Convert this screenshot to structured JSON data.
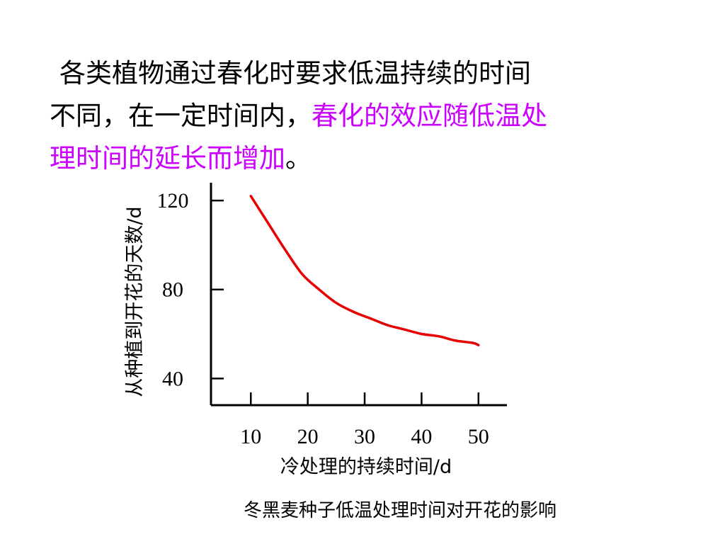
{
  "text": {
    "line1": "各类植物通过春化时要求低温持续的时间",
    "line2_plain": "不同，在一定时间内，",
    "line2_highlight": "春化的效应随低温处",
    "line3_highlight": "理时间的延长而增加",
    "line3_end": "。"
  },
  "colors": {
    "highlight": "#cc00ff",
    "curve": "#e60000",
    "axis": "#000000"
  },
  "chart_data": {
    "type": "line",
    "xlabel": "冷处理的持续时间/d",
    "ylabel": "从种植到开花的天数/d",
    "caption": "冬黑麦种子低温处理时间对开花的影响",
    "x_ticks": [
      10,
      20,
      30,
      40,
      50
    ],
    "y_ticks": [
      40,
      80,
      120
    ],
    "xlim": [
      3,
      55
    ],
    "ylim": [
      28,
      128
    ],
    "grid": false,
    "series": [
      {
        "x": [
          10,
          13,
          16,
          19,
          22,
          25,
          28,
          31,
          34,
          37,
          40,
          43,
          46,
          49,
          50
        ],
        "y": [
          122,
          110,
          98,
          87,
          80,
          74,
          70,
          67,
          64,
          62,
          60,
          59,
          57,
          56,
          55
        ]
      }
    ]
  }
}
